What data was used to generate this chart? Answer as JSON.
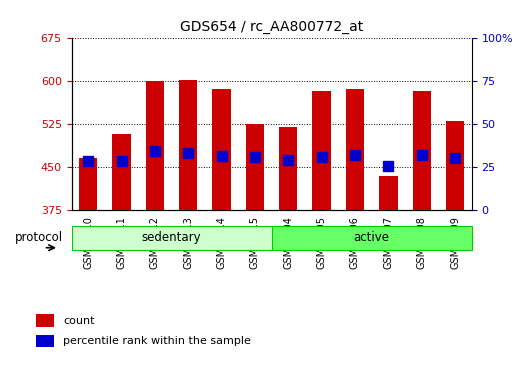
{
  "title": "GDS654 / rc_AA800772_at",
  "samples": [
    "GSM11210",
    "GSM11211",
    "GSM11212",
    "GSM11213",
    "GSM11214",
    "GSM11215",
    "GSM11204",
    "GSM11205",
    "GSM11206",
    "GSM11207",
    "GSM11208",
    "GSM11209"
  ],
  "groups": [
    "sedentary",
    "sedentary",
    "sedentary",
    "sedentary",
    "sedentary",
    "sedentary",
    "active",
    "active",
    "active",
    "active",
    "active",
    "active"
  ],
  "bar_bottom": 375,
  "counts": [
    465,
    508,
    600,
    601,
    585,
    525,
    520,
    583,
    585,
    435,
    583,
    530
  ],
  "percentile_values": [
    461,
    460,
    477,
    475,
    469,
    468,
    462,
    468,
    470,
    451,
    471,
    466
  ],
  "ylim": [
    375,
    675
  ],
  "yticks_left": [
    375,
    450,
    525,
    600,
    675
  ],
  "yticks_right": [
    0,
    25,
    50,
    75,
    100
  ],
  "right_tick_labels": [
    "0",
    "25",
    "50",
    "75",
    "100%"
  ],
  "bar_color": "#cc0000",
  "dot_color": "#0000cc",
  "sedentary_color": "#ccffcc",
  "active_color": "#66ff66",
  "group_border_color": "#00cc00",
  "left_tick_color": "#cc0000",
  "right_tick_color": "#0000cc",
  "background_color": "#ffffff",
  "bar_width": 0.55,
  "dot_size": 55,
  "sedentary_count": 6,
  "active_count": 6
}
